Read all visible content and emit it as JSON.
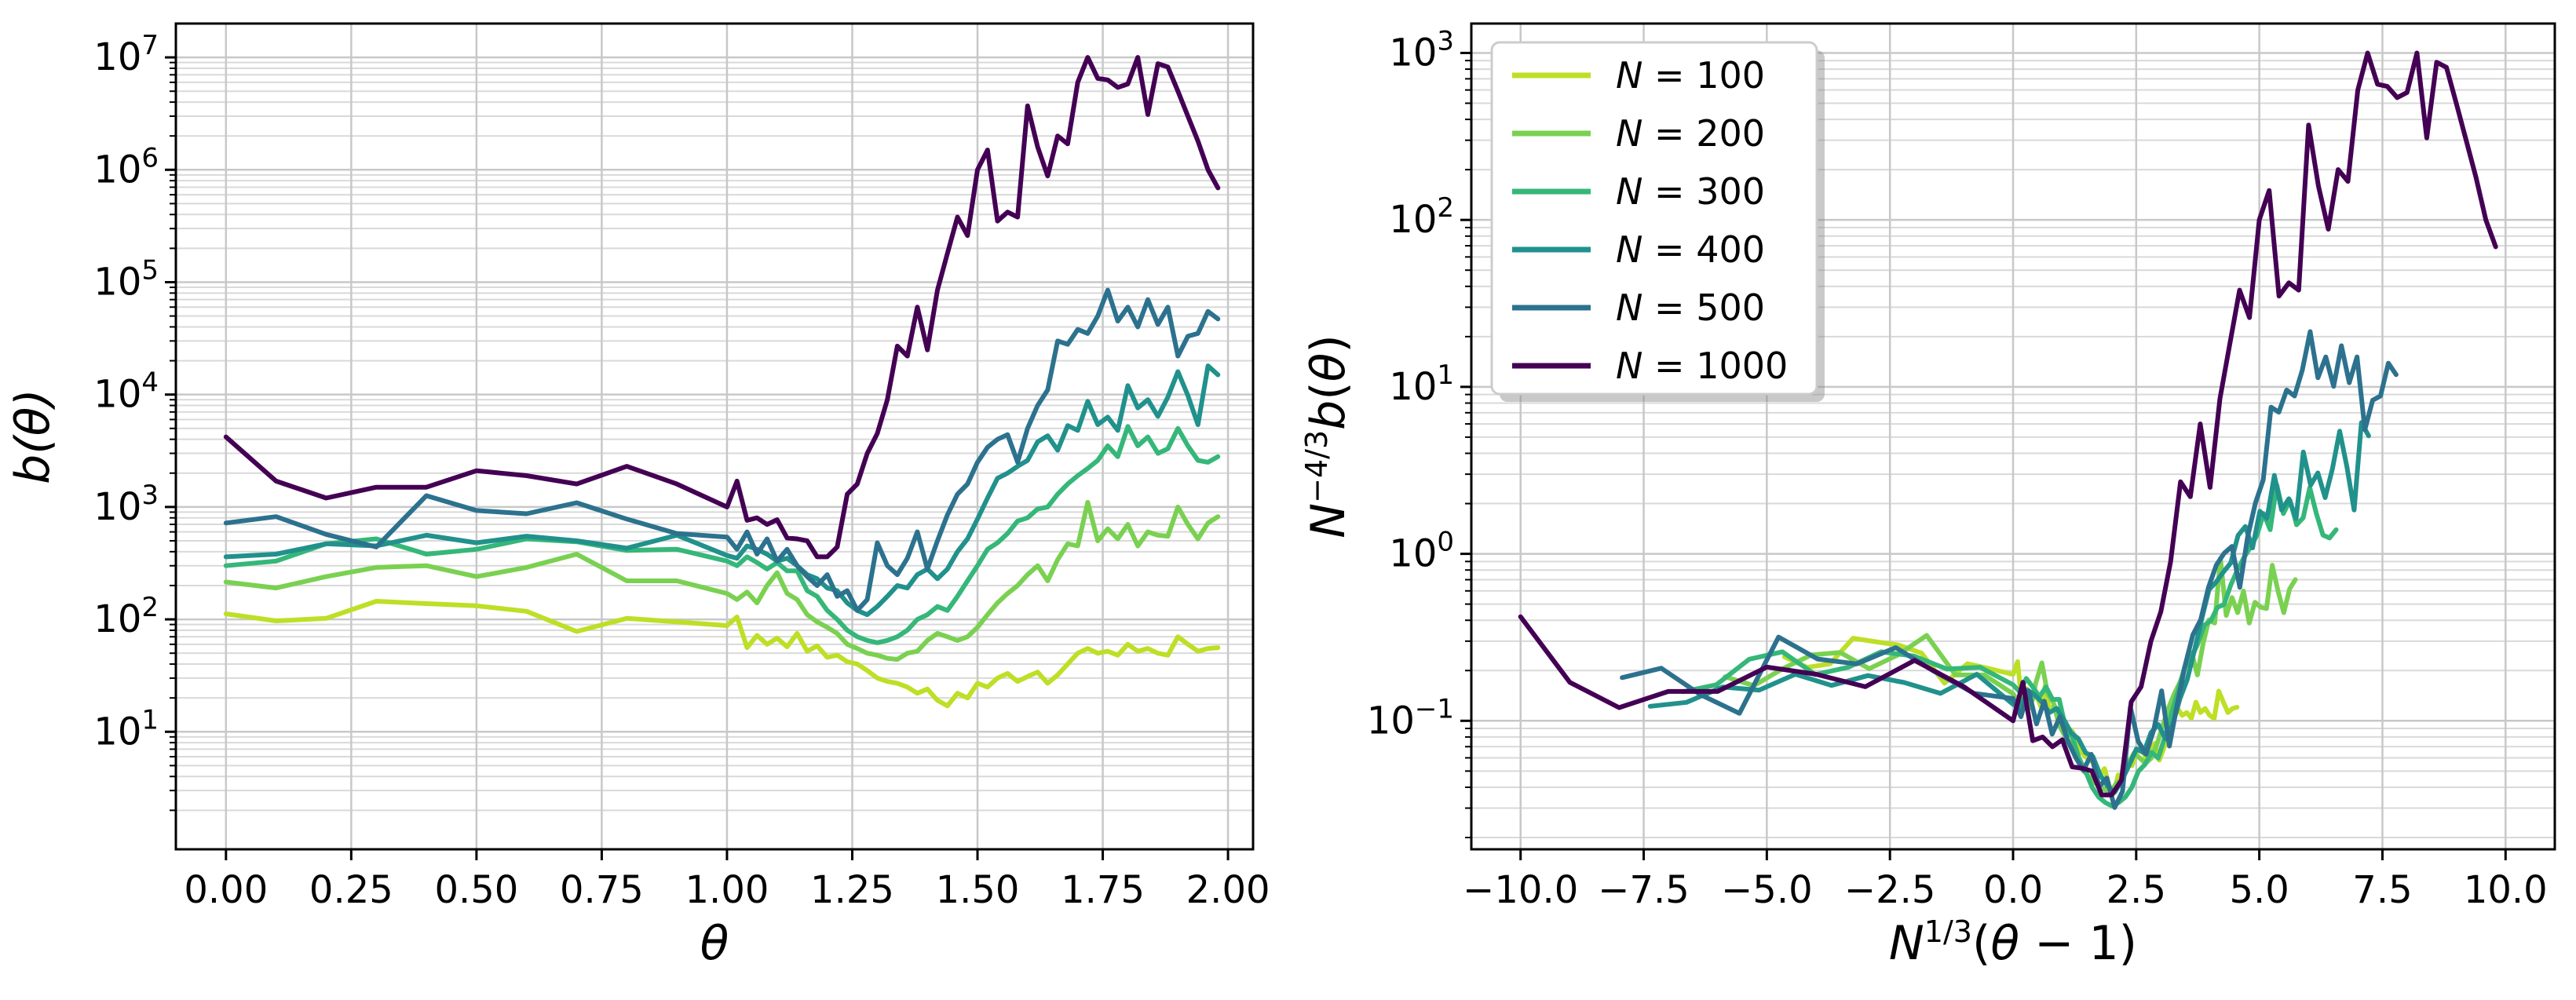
{
  "chart_data": [
    {
      "type": "line",
      "title": "",
      "xlabel": "θ",
      "ylabel": "b(θ)",
      "yscale": "log",
      "xlim": [
        -0.1,
        2.05
      ],
      "ylim": [
        0.9,
        20000000
      ],
      "xticks": [
        0.0,
        0.25,
        0.5,
        0.75,
        1.0,
        1.25,
        1.5,
        1.75,
        2.0
      ],
      "xtick_labels": [
        "0.00",
        "0.25",
        "0.50",
        "0.75",
        "1.00",
        "1.25",
        "1.50",
        "1.75",
        "2.00"
      ],
      "ytick_exponents": [
        1,
        2,
        3,
        4,
        5,
        6,
        7
      ],
      "grid": true,
      "series": [
        {
          "name": "N = 100",
          "color": "#bddf26",
          "x": [
            0.0,
            0.1,
            0.2,
            0.3,
            0.4,
            0.5,
            0.6,
            0.7,
            0.8,
            0.9,
            1.0,
            1.02,
            1.04,
            1.06,
            1.08,
            1.1,
            1.12,
            1.14,
            1.16,
            1.18,
            1.2,
            1.22,
            1.24,
            1.26,
            1.28,
            1.3,
            1.32,
            1.34,
            1.36,
            1.38,
            1.4,
            1.42,
            1.44,
            1.46,
            1.48,
            1.5,
            1.52,
            1.54,
            1.56,
            1.58,
            1.6,
            1.62,
            1.64,
            1.66,
            1.68,
            1.7,
            1.72,
            1.74,
            1.76,
            1.78,
            1.8,
            1.82,
            1.84,
            1.86,
            1.88,
            1.9,
            1.92,
            1.94,
            1.96,
            1.98
          ],
          "y": [
            112,
            97,
            102,
            145,
            138,
            132,
            118,
            78,
            102,
            95,
            88,
            105,
            56,
            72,
            60,
            68,
            57,
            75,
            52,
            58,
            46,
            48,
            42,
            40,
            35,
            30,
            28,
            27,
            25,
            22,
            24,
            19,
            17,
            22,
            20,
            27,
            25,
            30,
            33,
            28,
            31,
            34,
            27,
            32,
            40,
            50,
            55,
            50,
            52,
            48,
            60,
            52,
            55,
            50,
            48,
            70,
            60,
            52,
            55,
            56
          ]
        },
        {
          "name": "N = 200",
          "color": "#7ad151",
          "x": [
            0.0,
            0.1,
            0.2,
            0.3,
            0.4,
            0.5,
            0.6,
            0.7,
            0.8,
            0.9,
            1.0,
            1.02,
            1.04,
            1.06,
            1.08,
            1.1,
            1.12,
            1.14,
            1.16,
            1.18,
            1.2,
            1.22,
            1.24,
            1.26,
            1.28,
            1.3,
            1.32,
            1.34,
            1.36,
            1.38,
            1.4,
            1.42,
            1.44,
            1.46,
            1.48,
            1.5,
            1.52,
            1.54,
            1.56,
            1.58,
            1.6,
            1.62,
            1.64,
            1.66,
            1.68,
            1.7,
            1.72,
            1.74,
            1.76,
            1.78,
            1.8,
            1.82,
            1.84,
            1.86,
            1.88,
            1.9,
            1.92,
            1.94,
            1.96,
            1.98
          ],
          "y": [
            215,
            190,
            240,
            290,
            300,
            240,
            290,
            380,
            220,
            220,
            170,
            150,
            175,
            140,
            200,
            260,
            170,
            150,
            110,
            95,
            85,
            75,
            60,
            55,
            50,
            48,
            45,
            44,
            50,
            52,
            65,
            75,
            70,
            65,
            70,
            85,
            110,
            140,
            170,
            200,
            250,
            300,
            220,
            340,
            470,
            450,
            1100,
            500,
            640,
            520,
            700,
            450,
            600,
            560,
            550,
            1000,
            700,
            520,
            720,
            820
          ]
        },
        {
          "name": "N = 300",
          "color": "#35b779",
          "x": [
            0.0,
            0.1,
            0.2,
            0.3,
            0.4,
            0.5,
            0.6,
            0.7,
            0.8,
            0.9,
            1.0,
            1.02,
            1.04,
            1.06,
            1.08,
            1.1,
            1.12,
            1.14,
            1.16,
            1.18,
            1.2,
            1.22,
            1.24,
            1.26,
            1.28,
            1.3,
            1.32,
            1.34,
            1.36,
            1.38,
            1.4,
            1.42,
            1.44,
            1.46,
            1.48,
            1.5,
            1.52,
            1.54,
            1.56,
            1.58,
            1.6,
            1.62,
            1.64,
            1.66,
            1.68,
            1.7,
            1.72,
            1.74,
            1.76,
            1.78,
            1.8,
            1.82,
            1.84,
            1.86,
            1.88,
            1.9,
            1.92,
            1.94,
            1.96,
            1.98
          ],
          "y": [
            300,
            330,
            470,
            520,
            380,
            420,
            520,
            490,
            410,
            420,
            330,
            300,
            360,
            320,
            280,
            320,
            270,
            270,
            180,
            160,
            120,
            100,
            80,
            70,
            65,
            62,
            65,
            70,
            80,
            100,
            110,
            130,
            120,
            160,
            220,
            300,
            420,
            480,
            580,
            750,
            800,
            960,
            1000,
            1300,
            1600,
            1900,
            2200,
            2600,
            3500,
            2800,
            5200,
            3500,
            4200,
            3000,
            3300,
            5000,
            3500,
            2600,
            2500,
            2800
          ]
        },
        {
          "name": "N = 400",
          "color": "#21918c",
          "x": [
            0.0,
            0.1,
            0.2,
            0.3,
            0.4,
            0.5,
            0.6,
            0.7,
            0.8,
            0.9,
            1.0,
            1.02,
            1.04,
            1.06,
            1.08,
            1.1,
            1.12,
            1.14,
            1.16,
            1.18,
            1.2,
            1.22,
            1.24,
            1.26,
            1.28,
            1.3,
            1.32,
            1.34,
            1.36,
            1.38,
            1.4,
            1.42,
            1.44,
            1.46,
            1.48,
            1.5,
            1.52,
            1.54,
            1.56,
            1.58,
            1.6,
            1.62,
            1.64,
            1.66,
            1.68,
            1.7,
            1.72,
            1.74,
            1.76,
            1.78,
            1.8,
            1.82,
            1.84,
            1.86,
            1.88,
            1.9,
            1.92,
            1.94,
            1.96,
            1.98
          ],
          "y": [
            360,
            380,
            470,
            450,
            560,
            480,
            550,
            500,
            430,
            560,
            370,
            350,
            450,
            420,
            380,
            330,
            350,
            300,
            250,
            230,
            190,
            180,
            140,
            120,
            110,
            130,
            160,
            200,
            190,
            250,
            280,
            230,
            280,
            400,
            520,
            780,
            1200,
            1800,
            2000,
            2300,
            2600,
            3800,
            4300,
            3200,
            5300,
            4800,
            8700,
            5400,
            6300,
            4800,
            12000,
            7600,
            9000,
            6400,
            9500,
            16000,
            9800,
            5400,
            18000,
            15000
          ]
        },
        {
          "name": "N = 500",
          "color": "#2c728e",
          "x": [
            0.0,
            0.1,
            0.2,
            0.3,
            0.4,
            0.5,
            0.6,
            0.7,
            0.8,
            0.9,
            1.0,
            1.02,
            1.04,
            1.06,
            1.08,
            1.1,
            1.12,
            1.14,
            1.16,
            1.18,
            1.2,
            1.22,
            1.24,
            1.26,
            1.28,
            1.3,
            1.32,
            1.34,
            1.36,
            1.38,
            1.4,
            1.42,
            1.44,
            1.46,
            1.48,
            1.5,
            1.52,
            1.54,
            1.56,
            1.58,
            1.6,
            1.62,
            1.64,
            1.66,
            1.68,
            1.7,
            1.72,
            1.74,
            1.76,
            1.78,
            1.8,
            1.82,
            1.84,
            1.86,
            1.88,
            1.9,
            1.92,
            1.94,
            1.96,
            1.98
          ],
          "y": [
            720,
            820,
            570,
            440,
            1260,
            930,
            870,
            1090,
            780,
            580,
            540,
            420,
            600,
            380,
            520,
            330,
            420,
            300,
            240,
            200,
            250,
            160,
            180,
            120,
            150,
            480,
            300,
            250,
            350,
            600,
            280,
            500,
            850,
            1300,
            1600,
            2500,
            3400,
            4000,
            4400,
            2500,
            5000,
            8000,
            11000,
            30000,
            28000,
            38000,
            35000,
            50000,
            85000,
            45000,
            60000,
            40000,
            70000,
            42000,
            60000,
            22000,
            33000,
            35000,
            55000,
            47000
          ]
        },
        {
          "name": "N = 1000",
          "color": "#440154",
          "x": [
            0.0,
            0.1,
            0.2,
            0.3,
            0.4,
            0.5,
            0.6,
            0.7,
            0.8,
            0.9,
            1.0,
            1.02,
            1.04,
            1.06,
            1.08,
            1.1,
            1.12,
            1.14,
            1.16,
            1.18,
            1.2,
            1.22,
            1.24,
            1.26,
            1.28,
            1.3,
            1.32,
            1.34,
            1.36,
            1.38,
            1.4,
            1.42,
            1.44,
            1.46,
            1.48,
            1.5,
            1.52,
            1.54,
            1.56,
            1.58,
            1.6,
            1.62,
            1.64,
            1.66,
            1.68,
            1.7,
            1.72,
            1.74,
            1.76,
            1.78,
            1.8,
            1.82,
            1.84,
            1.86,
            1.88,
            1.9,
            1.92,
            1.94,
            1.96,
            1.98
          ],
          "y": [
            4200,
            1700,
            1200,
            1500,
            1500,
            2100,
            1900,
            1600,
            2300,
            1600,
            1000,
            1700,
            760,
            800,
            700,
            770,
            530,
            520,
            500,
            360,
            360,
            440,
            1300,
            1600,
            3000,
            4500,
            9000,
            27000,
            22000,
            60000,
            25000,
            85000,
            180000,
            380000,
            260000,
            1000000,
            1500000,
            350000,
            420000,
            380000,
            3700000,
            1600000,
            880000,
            2000000,
            1700000,
            6000000,
            10000000,
            6500000,
            6300000,
            5400000,
            5800000,
            10000000,
            3100000,
            8800000,
            8200000,
            5000000,
            3000000,
            1800000,
            1000000,
            690000
          ]
        }
      ]
    },
    {
      "type": "line",
      "title": "",
      "xlabel": "N^{1/3}(θ − 1)",
      "ylabel": "N^{−4/3}b(θ)",
      "yscale": "log",
      "xlim": [
        -11.0,
        11.0
      ],
      "ylim": [
        0.017,
        1500
      ],
      "xticks": [
        -10.0,
        -7.5,
        -5.0,
        -2.5,
        0.0,
        2.5,
        5.0,
        7.5,
        10.0
      ],
      "xtick_labels": [
        "−10.0",
        "−7.5",
        "−5.0",
        "−2.5",
        "0.0",
        "2.5",
        "5.0",
        "7.5",
        "10.0"
      ],
      "ytick_exponents": [
        -1,
        0,
        1,
        2,
        3
      ],
      "grid": true,
      "legend_position": "top-left",
      "series": [
        {
          "name": "N = 100",
          "color": "#bddf26",
          "N": 100,
          "source": 0
        },
        {
          "name": "N = 200",
          "color": "#7ad151",
          "N": 200,
          "source": 1
        },
        {
          "name": "N = 300",
          "color": "#35b779",
          "N": 300,
          "source": 2
        },
        {
          "name": "N = 400",
          "color": "#21918c",
          "N": 400,
          "source": 3
        },
        {
          "name": "N = 500",
          "color": "#2c728e",
          "N": 500,
          "source": 4
        },
        {
          "name": "N = 1000",
          "color": "#440154",
          "N": 1000,
          "source": 5
        }
      ]
    }
  ],
  "legend": {
    "entries": [
      {
        "prefix": "N",
        "value": "100",
        "color": "#bddf26"
      },
      {
        "prefix": "N",
        "value": "200",
        "color": "#7ad151"
      },
      {
        "prefix": "N",
        "value": "300",
        "color": "#35b779"
      },
      {
        "prefix": "N",
        "value": "400",
        "color": "#21918c"
      },
      {
        "prefix": "N",
        "value": "500",
        "color": "#2c728e"
      },
      {
        "prefix": "N",
        "value": "1000",
        "color": "#440154"
      }
    ]
  }
}
